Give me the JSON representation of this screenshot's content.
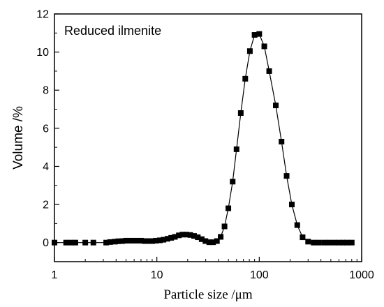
{
  "chart_data": {
    "type": "scatter",
    "legend_label": "Reduced ilmenite",
    "legend_position": "top-left",
    "xlabel": "Particle size /μm",
    "ylabel": "Volume /%",
    "x_scale": "log",
    "xlim": [
      1,
      1000
    ],
    "ylim": [
      -1,
      12
    ],
    "x_ticks": [
      1,
      10,
      100,
      1000
    ],
    "x_tick_labels": [
      "1",
      "10",
      "100",
      "1000"
    ],
    "y_ticks": [
      0,
      2,
      4,
      6,
      8,
      10,
      12
    ],
    "y_tick_labels": [
      "0",
      "2",
      "4",
      "6",
      "8",
      "10",
      "12"
    ],
    "grid": false,
    "marker": "square",
    "line": true,
    "series": [
      {
        "x": [
          1.0,
          1.3,
          1.45,
          1.6,
          2.0,
          2.4,
          3.2,
          3.5,
          3.9,
          4.2,
          4.6,
          5.0,
          5.4,
          5.9,
          6.4,
          7.0,
          7.6,
          8.3,
          9.0,
          9.8,
          10.7,
          11.6,
          12.7,
          13.8,
          15.0,
          16.4,
          17.8,
          19.4,
          21.2,
          23.1,
          25.1,
          27.4,
          29.8,
          32.5,
          35.4,
          38.6,
          42.0,
          45.8,
          49.9,
          55.0,
          60.0,
          66.0,
          73.0,
          81.0,
          90.0,
          100.0,
          112.0,
          125.0,
          145.0,
          165.0,
          185.0,
          208.0,
          235.0,
          265.0,
          300.0,
          340.0,
          380.0,
          430.0,
          480.0,
          540.0,
          600.0,
          660.0,
          720.0,
          800.0
        ],
        "y": [
          0,
          0,
          0,
          0,
          0,
          0,
          0,
          0.03,
          0.05,
          0.07,
          0.08,
          0.1,
          0.1,
          0.1,
          0.1,
          0.1,
          0.08,
          0.08,
          0.08,
          0.1,
          0.12,
          0.15,
          0.2,
          0.25,
          0.3,
          0.38,
          0.42,
          0.42,
          0.4,
          0.35,
          0.28,
          0.18,
          0.08,
          0.02,
          0.02,
          0.08,
          0.3,
          0.85,
          1.8,
          3.2,
          4.9,
          6.8,
          8.6,
          10.05,
          10.9,
          10.95,
          10.3,
          9.0,
          7.2,
          5.3,
          3.5,
          2.0,
          0.92,
          0.28,
          0.05,
          0,
          0,
          0,
          0,
          0,
          0,
          0,
          0,
          0
        ]
      }
    ]
  }
}
